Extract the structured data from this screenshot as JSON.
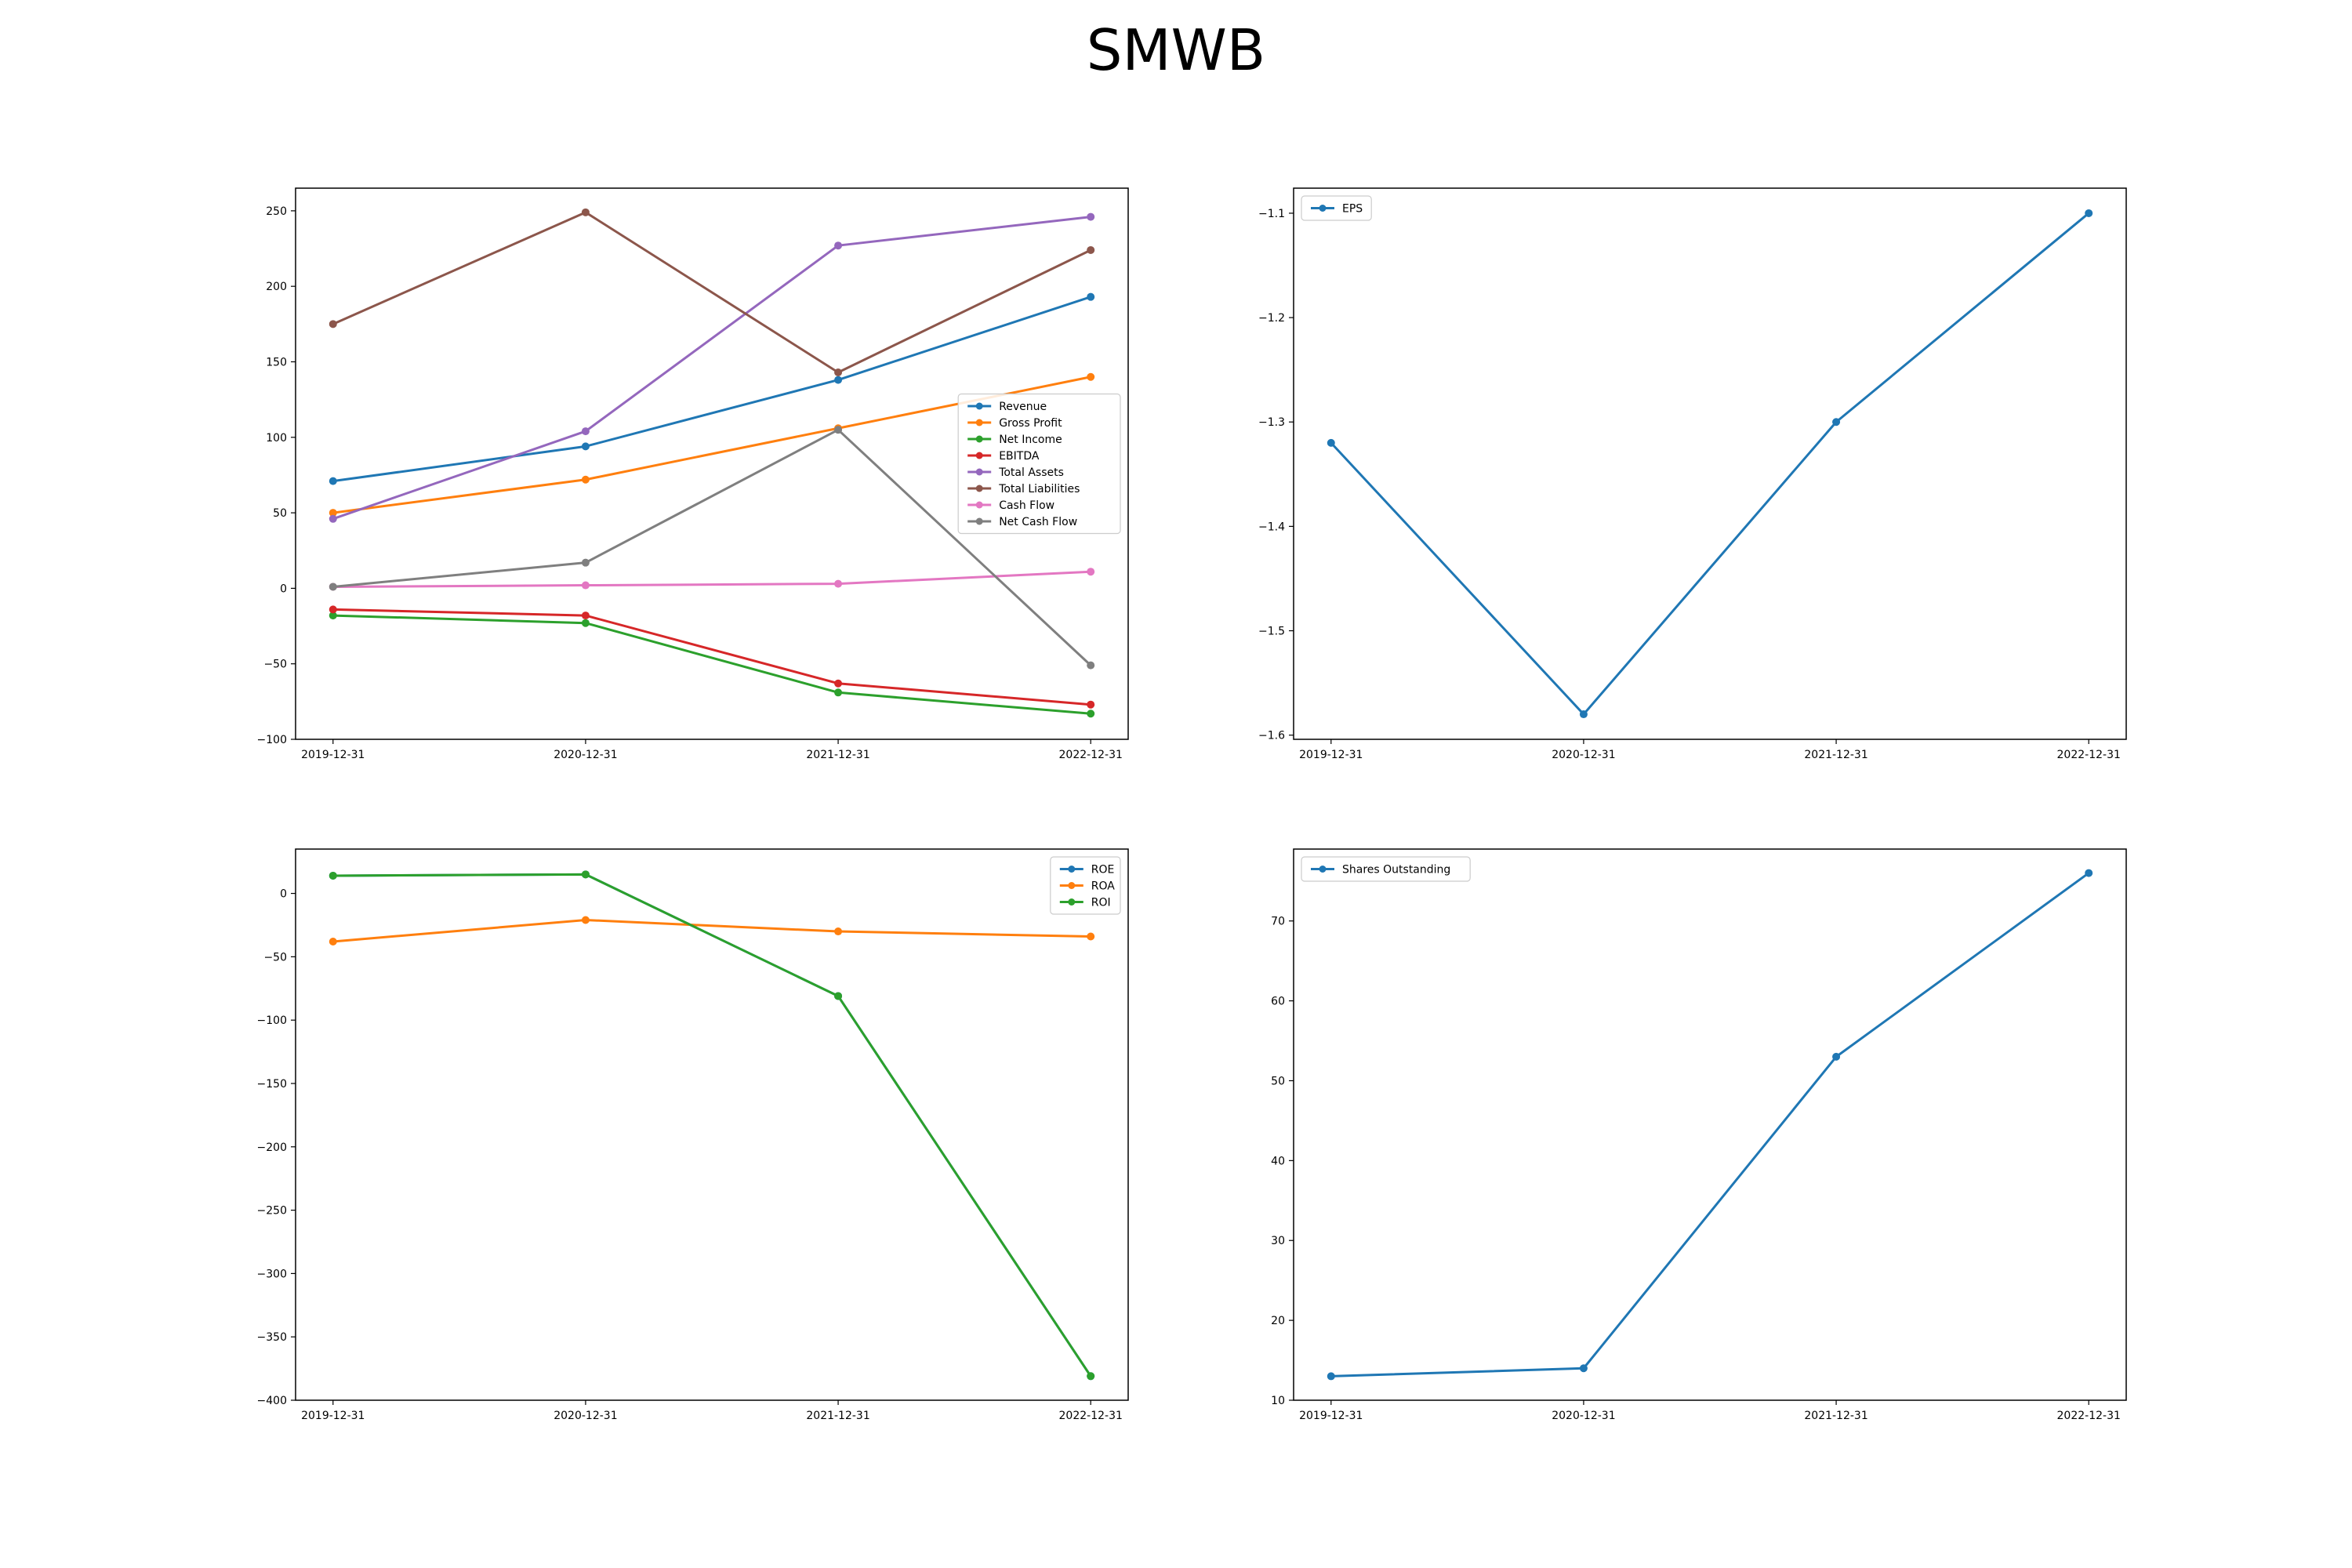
{
  "figure": {
    "title": "SMWB"
  },
  "chart_data": [
    {
      "type": "line",
      "categories": [
        "2019-12-31",
        "2020-12-31",
        "2021-12-31",
        "2022-12-31"
      ],
      "ylim": [
        -100,
        265
      ],
      "yticks": [
        -100,
        -50,
        0,
        50,
        100,
        150,
        200,
        250
      ],
      "legend": "center-right",
      "grid": false,
      "series": [
        {
          "name": "Revenue",
          "color": "#1f77b4",
          "values": [
            71,
            94,
            138,
            193
          ]
        },
        {
          "name": "Gross Profit",
          "color": "#ff7f0e",
          "values": [
            50,
            72,
            106,
            140
          ]
        },
        {
          "name": "Net Income",
          "color": "#2ca02c",
          "values": [
            -18,
            -23,
            -69,
            -83
          ]
        },
        {
          "name": "EBITDA",
          "color": "#d62728",
          "values": [
            -14,
            -18,
            -63,
            -77
          ]
        },
        {
          "name": "Total Assets",
          "color": "#9467bd",
          "values": [
            46,
            104,
            227,
            246
          ]
        },
        {
          "name": "Total Liabilities",
          "color": "#8c564b",
          "values": [
            175,
            249,
            143,
            224
          ]
        },
        {
          "name": "Cash Flow",
          "color": "#e377c2",
          "values": [
            1,
            2,
            3,
            11
          ]
        },
        {
          "name": "Net Cash Flow",
          "color": "#7f7f7f",
          "values": [
            1,
            17,
            105,
            -51
          ]
        }
      ]
    },
    {
      "type": "line",
      "categories": [
        "2019-12-31",
        "2020-12-31",
        "2021-12-31",
        "2022-12-31"
      ],
      "ylim": [
        -1.604,
        -1.076
      ],
      "yticks": [
        -1.6,
        -1.5,
        -1.4,
        -1.3,
        -1.2,
        -1.1
      ],
      "legend": "upper-left",
      "grid": false,
      "series": [
        {
          "name": "EPS",
          "color": "#1f77b4",
          "values": [
            -1.32,
            -1.58,
            -1.3,
            -1.1
          ]
        }
      ]
    },
    {
      "type": "line",
      "categories": [
        "2019-12-31",
        "2020-12-31",
        "2021-12-31",
        "2022-12-31"
      ],
      "ylim": [
        -400,
        35
      ],
      "yticks": [
        -400,
        -350,
        -300,
        -250,
        -200,
        -150,
        -100,
        -50,
        0
      ],
      "legend": "upper-right",
      "grid": false,
      "series": [
        {
          "name": "ROE",
          "color": "#1f77b4",
          "values": [
            14,
            15,
            -81,
            -381
          ]
        },
        {
          "name": "ROA",
          "color": "#ff7f0e",
          "values": [
            -38,
            -21,
            -30,
            -34
          ]
        },
        {
          "name": "ROI",
          "color": "#2ca02c",
          "values": [
            14,
            15,
            -81,
            -381
          ]
        }
      ]
    },
    {
      "type": "line",
      "categories": [
        "2019-12-31",
        "2020-12-31",
        "2021-12-31",
        "2022-12-31"
      ],
      "ylim": [
        10,
        79
      ],
      "yticks": [
        10,
        20,
        30,
        40,
        50,
        60,
        70
      ],
      "legend": "upper-left",
      "grid": false,
      "series": [
        {
          "name": "Shares Outstanding",
          "color": "#1f77b4",
          "values": [
            13,
            14,
            53,
            76
          ]
        }
      ]
    }
  ]
}
